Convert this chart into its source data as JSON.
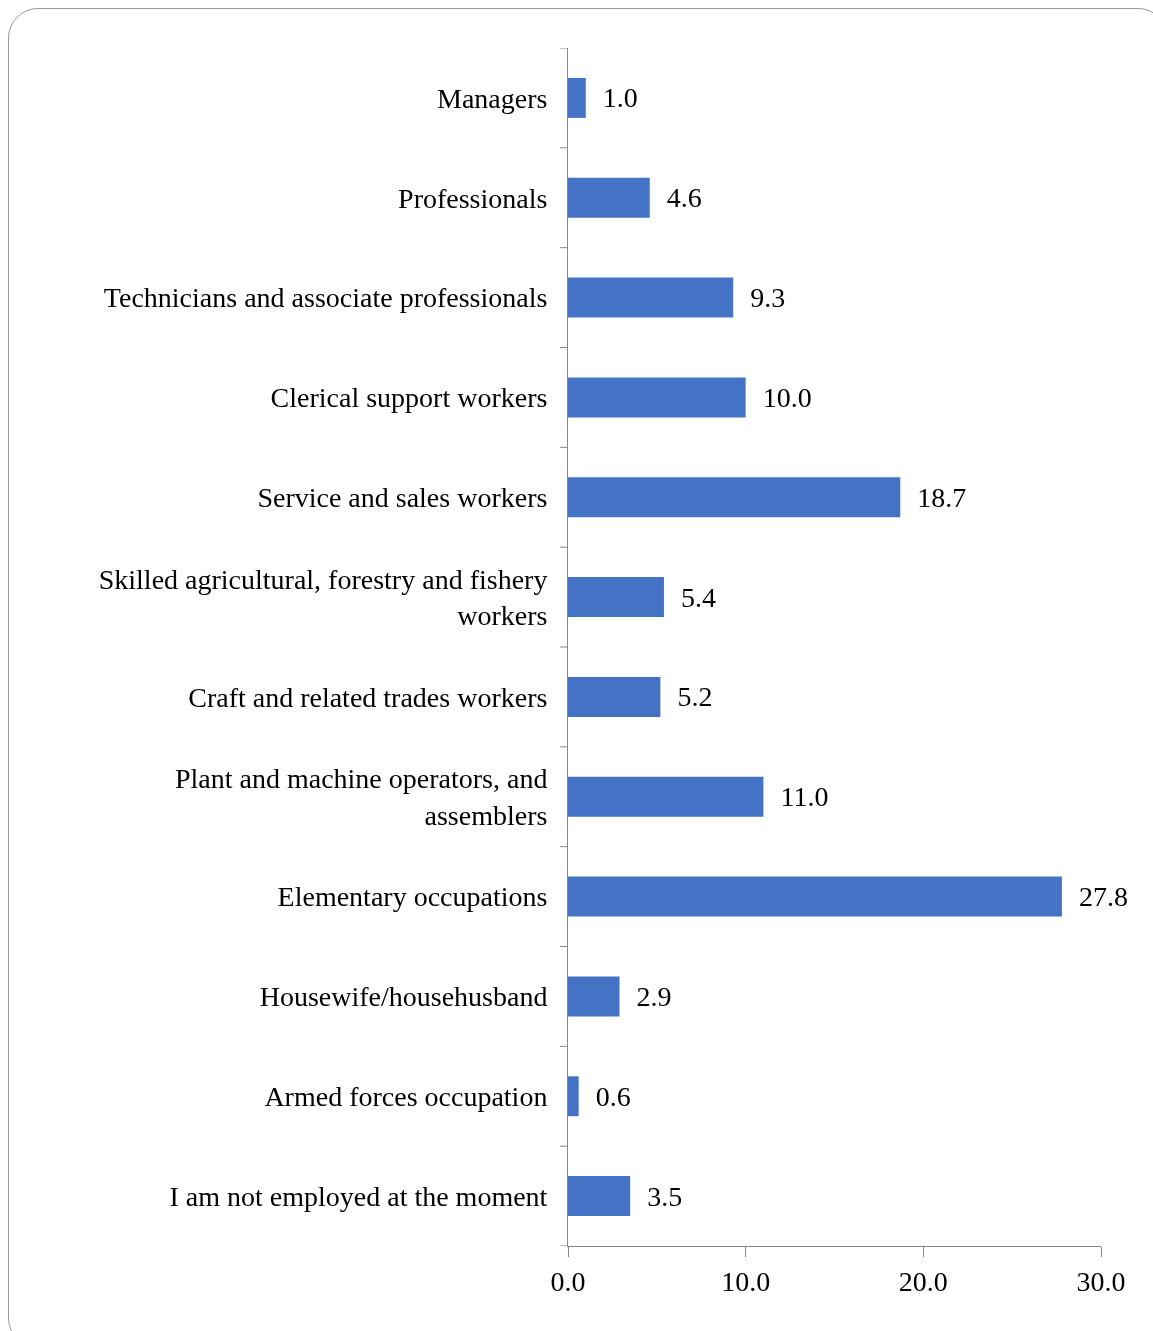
{
  "chart_data": {
    "type": "bar",
    "orientation": "horizontal",
    "categories": [
      "Managers",
      "Professionals",
      "Technicians and associate professionals",
      "Clerical support workers",
      "Service and sales workers",
      "Skilled agricultural, forestry and fishery workers",
      "Craft and related trades workers",
      "Plant and machine operators, and assemblers",
      "Elementary occupations",
      "Housewife/househusband",
      "Armed forces occupation",
      "I am not employed at the moment"
    ],
    "values": [
      1.0,
      4.6,
      9.3,
      10.0,
      18.7,
      5.4,
      5.2,
      11.0,
      27.8,
      2.9,
      0.6,
      3.5
    ],
    "value_labels": [
      "1.0",
      "4.6",
      "9.3",
      "10.0",
      "18.7",
      "5.4",
      "5.2",
      "11.0",
      "27.8",
      "2.9",
      "0.6",
      "3.5"
    ],
    "color": "#4472c4",
    "xlim": [
      0,
      30
    ],
    "xticks": [
      {
        "value": 0,
        "label": "0.0"
      },
      {
        "value": 10,
        "label": "10.0"
      },
      {
        "value": 20,
        "label": "20.0"
      },
      {
        "value": 30,
        "label": "30.0"
      }
    ],
    "grid": false
  }
}
